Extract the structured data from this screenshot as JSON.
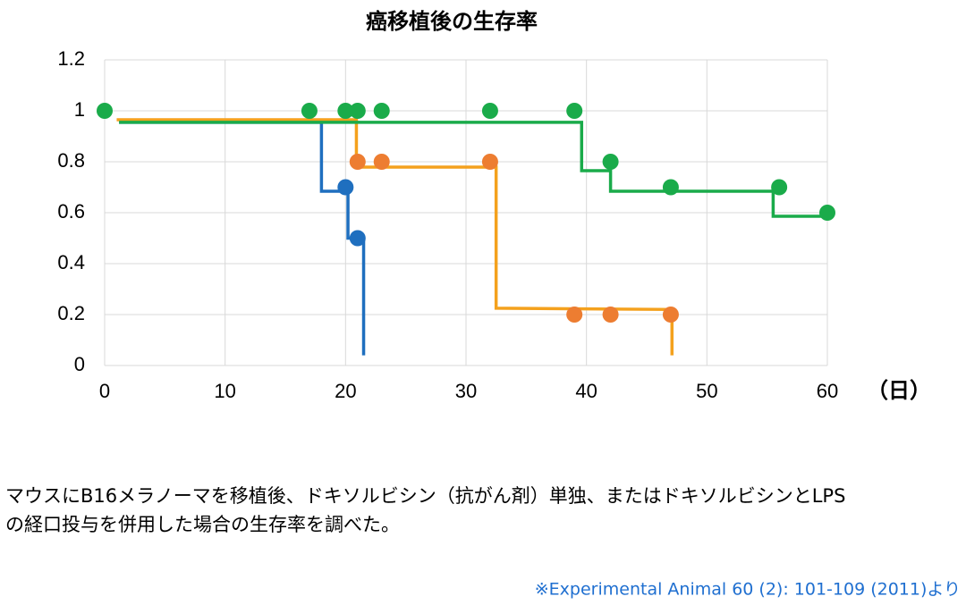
{
  "chart_data": {
    "type": "scatter-step",
    "title": "癌移植後の生存率",
    "x_label": "（日）",
    "xlim": [
      0,
      60
    ],
    "xticks": [
      0,
      10,
      20,
      30,
      40,
      50,
      60
    ],
    "ylim": [
      0,
      1.2
    ],
    "yticks": [
      0,
      0.2,
      0.4,
      0.6,
      0.8,
      1,
      1.2
    ],
    "grid": true,
    "series": [
      {
        "mark": "step",
        "color": "#1f6fbf",
        "x": [
          1.2,
          18,
          18,
          20.2,
          20.2,
          21.5,
          21.5
        ],
        "values": [
          0.955,
          0.955,
          0.684,
          0.684,
          0.5,
          0.5,
          0.04
        ]
      },
      {
        "mark": "step",
        "color": "#f4a11d",
        "x": [
          1,
          20.9,
          20.9,
          32.5,
          32.5,
          47.1,
          47.1
        ],
        "values": [
          0.965,
          0.965,
          0.779,
          0.779,
          0.225,
          0.22,
          0.04
        ]
      },
      {
        "mark": "step",
        "color": "#1aab4a",
        "x": [
          1.2,
          39.6,
          39.6,
          42,
          42,
          55.5,
          55.5,
          60
        ],
        "values": [
          0.955,
          0.955,
          0.765,
          0.765,
          0.684,
          0.684,
          0.586,
          0.586
        ]
      },
      {
        "mark": "dot",
        "color": "#1f6fbf",
        "x": [
          20,
          21
        ],
        "values": [
          0.7,
          0.5
        ]
      },
      {
        "mark": "dot",
        "color": "#ed7d31",
        "x": [
          21,
          23,
          32,
          39,
          42,
          47
        ],
        "values": [
          0.8,
          0.8,
          0.8,
          0.2,
          0.2,
          0.2
        ]
      },
      {
        "mark": "dot",
        "color": "#1aab4a",
        "x": [
          0,
          17,
          20,
          21,
          23,
          32,
          39,
          42,
          47,
          56,
          60
        ],
        "values": [
          1,
          1,
          1,
          1,
          1,
          1,
          1,
          0.8,
          0.7,
          0.7,
          0.6
        ]
      }
    ]
  },
  "caption": [
    "マウスにB16メラノーマを移植後、ドキソルビシン（抗がん剤）単独、またはドキソルビシンとLPS",
    "の経口投与を併用した場合の生存率を調べた。"
  ],
  "source": "※Experimental Animal 60 (2): 101-109 (2011)より"
}
